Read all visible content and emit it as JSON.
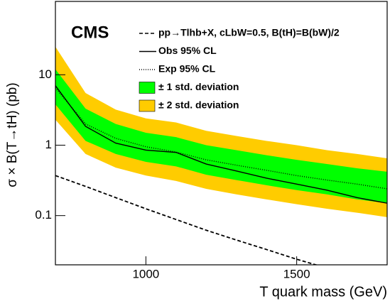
{
  "chart_data": {
    "type": "limit",
    "annotation": "CMS",
    "xlabel": "T quark mass (GeV)",
    "ylabel": "σ × B(T→tH) (pb)",
    "x": [
      700,
      800,
      900,
      1000,
      1100,
      1200,
      1300,
      1400,
      1500,
      1600,
      1700,
      1800
    ],
    "xlim": [
      700,
      1800
    ],
    "xticks": [
      1000,
      1500
    ],
    "ylim": [
      0.02,
      110
    ],
    "yticks": [
      0.1,
      1,
      10
    ],
    "log_y": true,
    "bands": [
      {
        "name": "± 2 std. deviation",
        "color": "#ffcc00",
        "upper": [
          25,
          5.5,
          3.2,
          2.4,
          2.1,
          1.6,
          1.35,
          1.15,
          1.0,
          0.85,
          0.75,
          0.65
        ],
        "lower": [
          2.3,
          0.75,
          0.48,
          0.37,
          0.31,
          0.24,
          0.2,
          0.17,
          0.145,
          0.125,
          0.11,
          0.095
        ]
      },
      {
        "name": "± 1 std. deviation",
        "color": "#00ff00",
        "upper": [
          12,
          3.3,
          2.0,
          1.5,
          1.3,
          1.0,
          0.85,
          0.72,
          0.62,
          0.54,
          0.47,
          0.42
        ],
        "lower": [
          3.8,
          1.15,
          0.75,
          0.58,
          0.5,
          0.38,
          0.32,
          0.27,
          0.23,
          0.2,
          0.17,
          0.15
        ]
      }
    ],
    "series": [
      {
        "name": "pp→Tlhb+X, cLbW=0.5, B(tH)=B(bW)/2",
        "color": "#000000",
        "dash": "5,3",
        "values": [
          0.37,
          0.26,
          0.18,
          0.125,
          0.088,
          0.062,
          0.045,
          0.033,
          0.024,
          0.018,
          null,
          null
        ]
      },
      {
        "name": "Obs 95% CL",
        "color": "#000000",
        "dash": "none",
        "values": [
          7,
          1.85,
          1.07,
          0.85,
          0.79,
          0.54,
          0.43,
          0.34,
          0.28,
          0.23,
          0.18,
          0.15
        ]
      },
      {
        "name": "Exp 95% CL",
        "color": "#000000",
        "dash": "1,2",
        "values": [
          6.5,
          2.0,
          1.25,
          0.95,
          0.8,
          0.62,
          0.52,
          0.44,
          0.37,
          0.32,
          0.28,
          0.24
        ]
      }
    ]
  }
}
